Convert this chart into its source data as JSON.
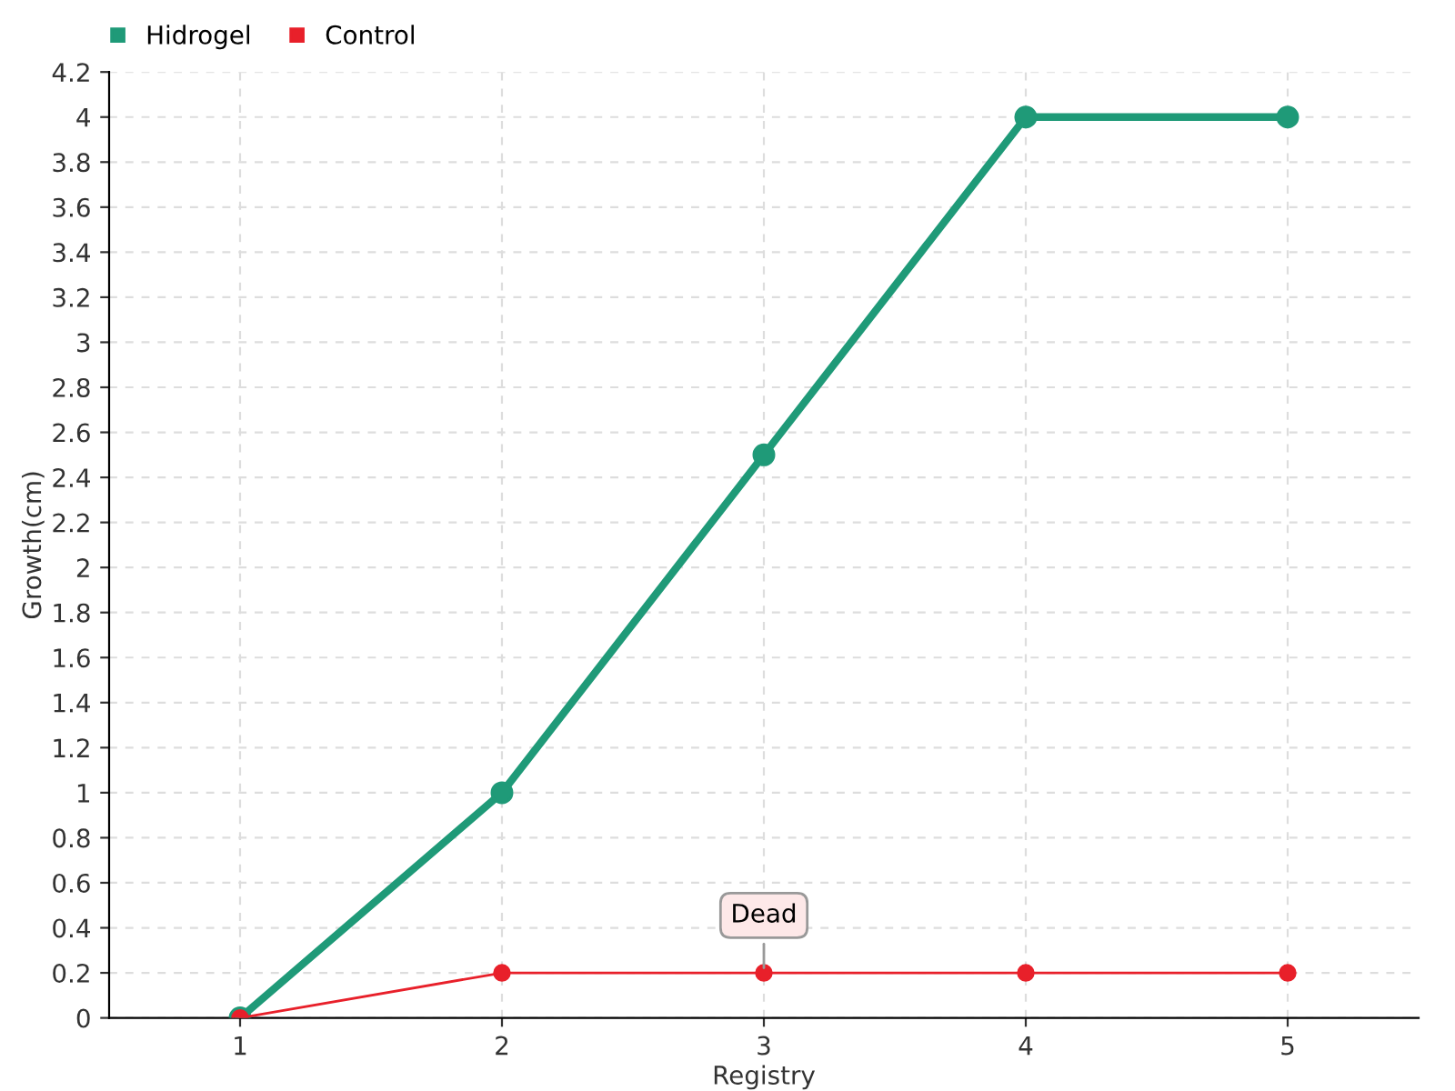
{
  "chart_data": {
    "type": "line",
    "xlabel": "Registry",
    "ylabel": "Growth(cm)",
    "x": [
      1,
      2,
      3,
      4,
      5
    ],
    "series": [
      {
        "name": "Hidrogel",
        "color": "#1f9a78",
        "values": [
          0,
          1,
          2.5,
          4,
          4
        ]
      },
      {
        "name": "Control",
        "color": "#e8202a",
        "values": [
          0,
          0.2,
          0.2,
          0.2,
          0.2
        ]
      }
    ],
    "annotations": [
      {
        "text": "Dead",
        "x": 3,
        "y": 0.2
      }
    ],
    "xlim": [
      0.5,
      5.5
    ],
    "xticks": [
      1,
      2,
      3,
      4,
      5
    ],
    "ylim": [
      0,
      4.2
    ],
    "yticks": [
      0,
      0.2,
      0.4,
      0.6,
      0.8,
      1,
      1.2,
      1.4,
      1.6,
      1.8,
      2,
      2.2,
      2.4,
      2.6,
      2.8,
      3,
      3.2,
      3.4,
      3.6,
      3.8,
      4,
      4.2
    ],
    "grid": true,
    "legend": "top left",
    "marker": "circle",
    "line_style": "solid"
  }
}
